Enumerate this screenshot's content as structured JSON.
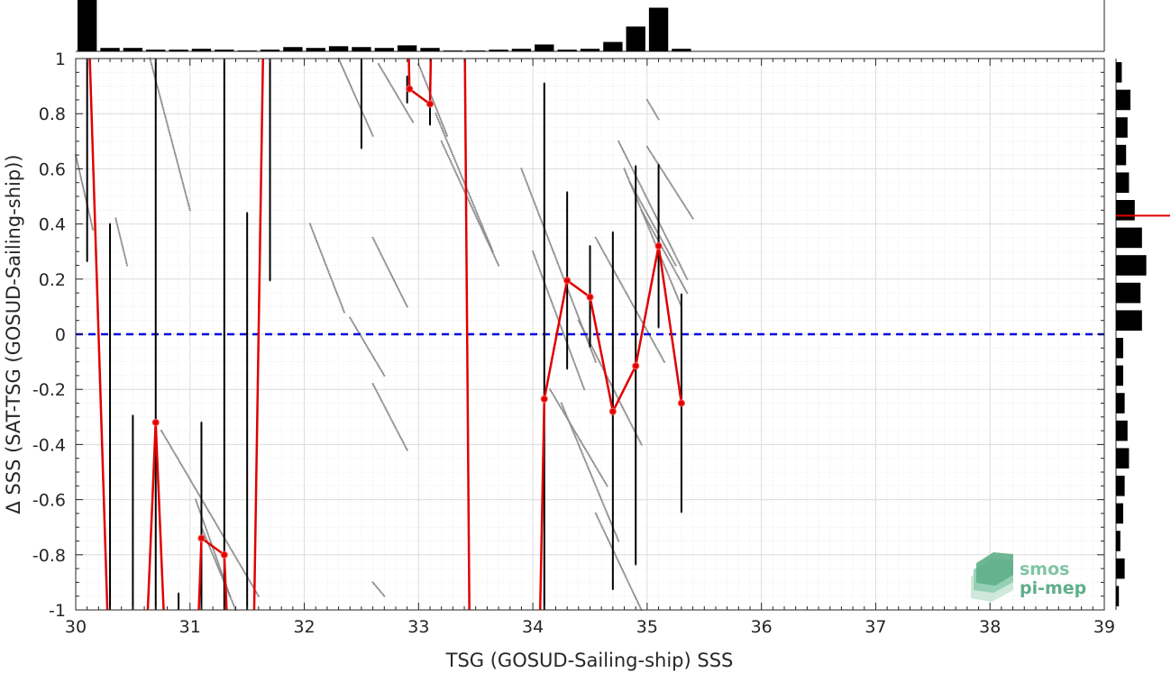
{
  "chart_data": {
    "type": "scatter",
    "title": "",
    "xlabel": "TSG (GOSUD-Sailing-ship) SSS",
    "ylabel": "Δ SSS (SAT-TSG (GOSUD-Sailing-ship))",
    "xlim": [
      30,
      39
    ],
    "ylim": [
      -1,
      1
    ],
    "xticks": [
      30,
      31,
      32,
      33,
      34,
      35,
      36,
      37,
      38,
      39
    ],
    "yticks": [
      -1,
      -0.8,
      -0.6,
      -0.4,
      -0.2,
      0,
      0.2,
      0.4,
      0.6,
      0.8,
      1
    ],
    "ytick_labels": [
      "-1",
      "-0.8",
      "-0.6",
      "-0.4",
      "-0.2",
      "0",
      "0.2",
      "0.4",
      "0.6",
      "0.8",
      "1"
    ],
    "grid": true,
    "zero_line": {
      "y": 0,
      "color": "#0000dd",
      "style": "dashed"
    },
    "mean_line": {
      "color": "#e00000",
      "segments": [
        [
          [
            30.1,
            1.3
          ],
          [
            30.3,
            -1.3
          ]
        ],
        [
          [
            30.6,
            -1.3
          ],
          [
            30.7,
            -0.32
          ],
          [
            30.8,
            -1.3
          ]
        ],
        [
          [
            31.05,
            -1.3
          ],
          [
            31.1,
            -0.74
          ],
          [
            31.3,
            -0.8
          ],
          [
            31.35,
            -1.3
          ]
        ],
        [
          [
            31.55,
            -1.3
          ],
          [
            31.65,
            1.3
          ]
        ],
        [
          [
            32.9,
            1.3
          ],
          [
            32.92,
            0.89
          ],
          [
            33.1,
            0.835
          ],
          [
            33.12,
            1.3
          ]
        ],
        [
          [
            33.4,
            1.3
          ],
          [
            33.45,
            -1.3
          ]
        ],
        [
          [
            34.05,
            -1.3
          ],
          [
            34.1,
            -0.235
          ],
          [
            34.3,
            0.195
          ],
          [
            34.5,
            0.135
          ],
          [
            34.7,
            -0.28
          ],
          [
            34.9,
            -0.115
          ],
          [
            35.1,
            0.32
          ],
          [
            35.3,
            -0.25
          ]
        ]
      ],
      "markers": [
        [
          30.7,
          -0.32
        ],
        [
          31.1,
          -0.74
        ],
        [
          31.3,
          -0.8
        ],
        [
          32.92,
          0.89
        ],
        [
          33.1,
          0.835
        ],
        [
          34.1,
          -0.235
        ],
        [
          34.3,
          0.195
        ],
        [
          34.5,
          0.135
        ],
        [
          34.7,
          -0.28
        ],
        [
          34.9,
          -0.115
        ],
        [
          35.1,
          0.32
        ],
        [
          35.3,
          -0.25
        ]
      ]
    },
    "error_bars": [
      {
        "x": 30.1,
        "low": 0.265,
        "high": 1.0
      },
      {
        "x": 30.3,
        "low": -1.0,
        "high": 0.4
      },
      {
        "x": 30.5,
        "low": -1.0,
        "high": -0.295
      },
      {
        "x": 30.7,
        "low": -1.0,
        "high": 1.0
      },
      {
        "x": 30.9,
        "low": -1.0,
        "high": -0.94
      },
      {
        "x": 31.1,
        "low": -1.0,
        "high": -0.32
      },
      {
        "x": 31.3,
        "low": -1.0,
        "high": 1.0
      },
      {
        "x": 31.5,
        "low": -1.0,
        "high": 0.44
      },
      {
        "x": 31.7,
        "low": 0.195,
        "high": 1.0
      },
      {
        "x": 32.5,
        "low": 0.675,
        "high": 1.0
      },
      {
        "x": 32.9,
        "low": 0.84,
        "high": 0.935
      },
      {
        "x": 33.1,
        "low": 0.76,
        "high": 0.91
      },
      {
        "x": 34.1,
        "low": -1.0,
        "high": 0.91
      },
      {
        "x": 34.3,
        "low": -0.125,
        "high": 0.515
      },
      {
        "x": 34.5,
        "low": -0.045,
        "high": 0.32
      },
      {
        "x": 34.7,
        "low": -0.925,
        "high": 0.37
      },
      {
        "x": 34.9,
        "low": -0.835,
        "high": 0.61
      },
      {
        "x": 35.1,
        "low": 0.025,
        "high": 0.615
      },
      {
        "x": 35.3,
        "low": -0.645,
        "high": 0.145
      }
    ],
    "scatter_streaks": [
      [
        [
          30.0,
          0.65
        ],
        [
          30.15,
          0.38
        ]
      ],
      [
        [
          30.35,
          0.42
        ],
        [
          30.45,
          0.25
        ]
      ],
      [
        [
          30.65,
          1.0
        ],
        [
          31.0,
          0.45
        ]
      ],
      [
        [
          30.75,
          -0.35
        ],
        [
          31.6,
          -0.95
        ]
      ],
      [
        [
          31.05,
          -0.6
        ],
        [
          31.35,
          -0.95
        ]
      ],
      [
        [
          31.1,
          -0.7
        ],
        [
          31.4,
          -1.0
        ]
      ],
      [
        [
          32.4,
          0.06
        ],
        [
          32.7,
          -0.15
        ]
      ],
      [
        [
          32.6,
          -0.18
        ],
        [
          32.9,
          -0.42
        ]
      ],
      [
        [
          32.05,
          0.4
        ],
        [
          32.35,
          0.08
        ]
      ],
      [
        [
          32.6,
          0.35
        ],
        [
          32.9,
          0.1
        ]
      ],
      [
        [
          32.3,
          1.0
        ],
        [
          32.6,
          0.72
        ]
      ],
      [
        [
          32.65,
          0.98
        ],
        [
          32.95,
          0.77
        ]
      ],
      [
        [
          33.0,
          0.98
        ],
        [
          33.25,
          0.72
        ]
      ],
      [
        [
          33.15,
          0.8
        ],
        [
          33.65,
          0.3
        ]
      ],
      [
        [
          33.2,
          0.7
        ],
        [
          33.7,
          0.25
        ]
      ],
      [
        [
          33.9,
          0.6
        ],
        [
          34.55,
          -0.1
        ]
      ],
      [
        [
          34.0,
          0.3
        ],
        [
          34.45,
          -0.2
        ]
      ],
      [
        [
          34.15,
          -0.2
        ],
        [
          34.65,
          -0.55
        ]
      ],
      [
        [
          34.25,
          -0.25
        ],
        [
          34.75,
          -0.75
        ]
      ],
      [
        [
          34.4,
          0.05
        ],
        [
          34.95,
          -0.4
        ]
      ],
      [
        [
          34.55,
          -0.65
        ],
        [
          34.95,
          -1.0
        ]
      ],
      [
        [
          34.55,
          0.35
        ],
        [
          35.15,
          -0.1
        ]
      ],
      [
        [
          34.75,
          0.7
        ],
        [
          35.35,
          0.2
        ]
      ],
      [
        [
          34.8,
          0.6
        ],
        [
          35.3,
          0.1
        ]
      ],
      [
        [
          34.85,
          0.55
        ],
        [
          35.25,
          0.25
        ]
      ],
      [
        [
          34.95,
          0.45
        ],
        [
          35.35,
          0.15
        ]
      ],
      [
        [
          35.0,
          0.68
        ],
        [
          35.4,
          0.42
        ]
      ],
      [
        [
          35.0,
          0.85
        ],
        [
          35.1,
          0.78
        ]
      ],
      [
        [
          32.6,
          -0.9
        ],
        [
          32.7,
          -0.95
        ]
      ]
    ],
    "top_histogram": {
      "bin_width": 0.2,
      "bin_starts": [
        30.0,
        30.2,
        30.4,
        30.6,
        30.8,
        31.0,
        31.2,
        31.4,
        31.6,
        31.8,
        32.0,
        32.2,
        32.4,
        32.6,
        32.8,
        33.0,
        33.2,
        33.4,
        33.6,
        33.8,
        34.0,
        34.2,
        34.4,
        34.6,
        34.8,
        35.0,
        35.2
      ],
      "counts": [
        60,
        4,
        4,
        2,
        2,
        3,
        2,
        1,
        2,
        5,
        4,
        6,
        5,
        4,
        7,
        4,
        1,
        1,
        2,
        3,
        8,
        2,
        3,
        11,
        29,
        51,
        3
      ]
    },
    "right_histogram": {
      "bin_width": 0.1,
      "bin_starts": [
        0.9,
        0.8,
        0.7,
        0.6,
        0.5,
        0.4,
        0.3,
        0.2,
        0.1,
        0.0,
        -0.1,
        -0.2,
        -0.3,
        -0.4,
        -0.5,
        -0.6,
        -0.7,
        -0.8,
        -0.9,
        -1.0
      ],
      "counts": [
        4,
        10,
        8,
        7,
        9,
        13,
        18,
        21,
        17,
        18,
        5,
        5,
        6,
        8,
        9,
        6,
        5,
        3,
        6,
        2
      ],
      "mean_marker": 0.43
    },
    "logo": {
      "line1": "smos",
      "line2": "pi-mep"
    }
  }
}
